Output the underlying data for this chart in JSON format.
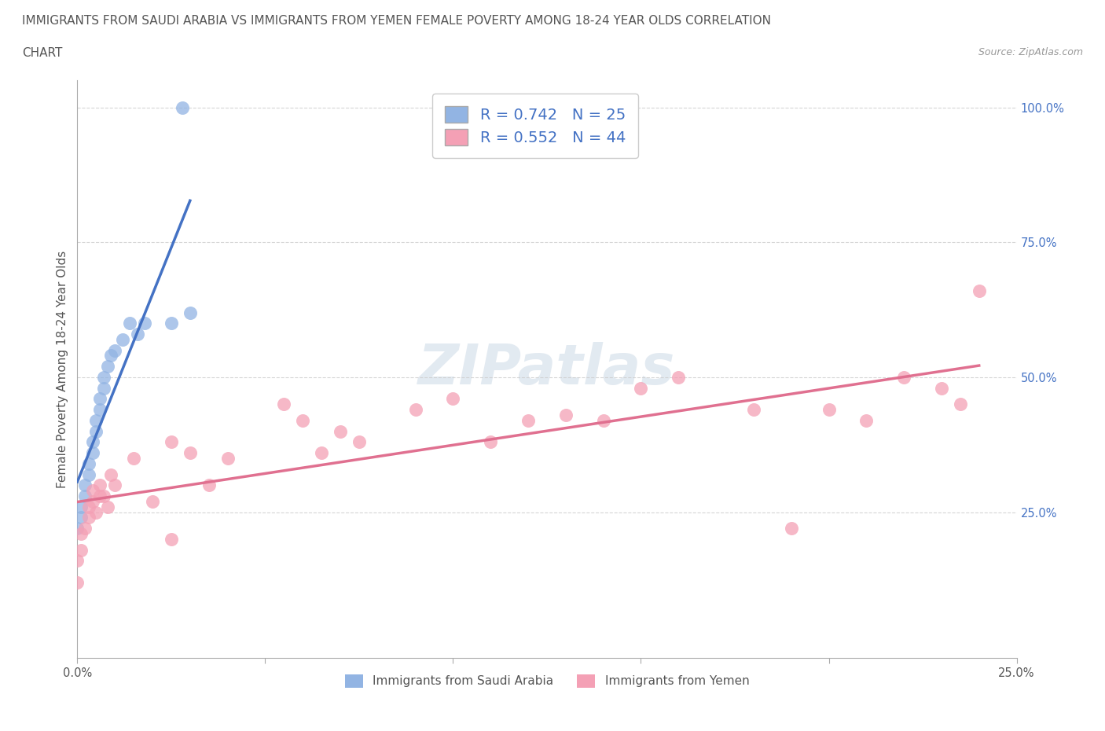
{
  "title_line1": "IMMIGRANTS FROM SAUDI ARABIA VS IMMIGRANTS FROM YEMEN FEMALE POVERTY AMONG 18-24 YEAR OLDS CORRELATION",
  "title_line2": "CHART",
  "source_text": "Source: ZipAtlas.com",
  "ylabel": "Female Poverty Among 18-24 Year Olds",
  "xlim": [
    0.0,
    0.25
  ],
  "ylim": [
    -0.02,
    1.05
  ],
  "saudi_color": "#92b4e3",
  "yemen_color": "#f4a0b5",
  "saudi_line_color": "#4472c4",
  "yemen_line_color": "#e07090",
  "r_saudi": 0.742,
  "n_saudi": 25,
  "r_yemen": 0.552,
  "n_yemen": 44,
  "saudi_x": [
    0.0,
    0.001,
    0.001,
    0.002,
    0.002,
    0.003,
    0.003,
    0.004,
    0.004,
    0.005,
    0.005,
    0.006,
    0.006,
    0.007,
    0.007,
    0.008,
    0.009,
    0.01,
    0.012,
    0.014,
    0.016,
    0.018,
    0.025,
    0.03,
    0.028
  ],
  "saudi_y": [
    0.22,
    0.24,
    0.26,
    0.28,
    0.3,
    0.32,
    0.34,
    0.36,
    0.38,
    0.4,
    0.42,
    0.44,
    0.46,
    0.48,
    0.5,
    0.52,
    0.54,
    0.55,
    0.57,
    0.6,
    0.58,
    0.6,
    0.6,
    0.62,
    1.0
  ],
  "yemen_x": [
    0.0,
    0.0,
    0.001,
    0.001,
    0.002,
    0.003,
    0.003,
    0.004,
    0.004,
    0.005,
    0.006,
    0.006,
    0.007,
    0.008,
    0.009,
    0.01,
    0.015,
    0.02,
    0.025,
    0.03,
    0.035,
    0.04,
    0.055,
    0.06,
    0.065,
    0.07,
    0.075,
    0.09,
    0.1,
    0.11,
    0.12,
    0.13,
    0.14,
    0.15,
    0.16,
    0.18,
    0.19,
    0.2,
    0.21,
    0.22,
    0.23,
    0.235,
    0.24,
    0.025
  ],
  "yemen_y": [
    0.12,
    0.16,
    0.18,
    0.21,
    0.22,
    0.24,
    0.26,
    0.27,
    0.29,
    0.25,
    0.28,
    0.3,
    0.28,
    0.26,
    0.32,
    0.3,
    0.35,
    0.27,
    0.38,
    0.36,
    0.3,
    0.35,
    0.45,
    0.42,
    0.36,
    0.4,
    0.38,
    0.44,
    0.46,
    0.38,
    0.42,
    0.43,
    0.42,
    0.48,
    0.5,
    0.44,
    0.22,
    0.44,
    0.42,
    0.5,
    0.48,
    0.45,
    0.66,
    0.2
  ]
}
